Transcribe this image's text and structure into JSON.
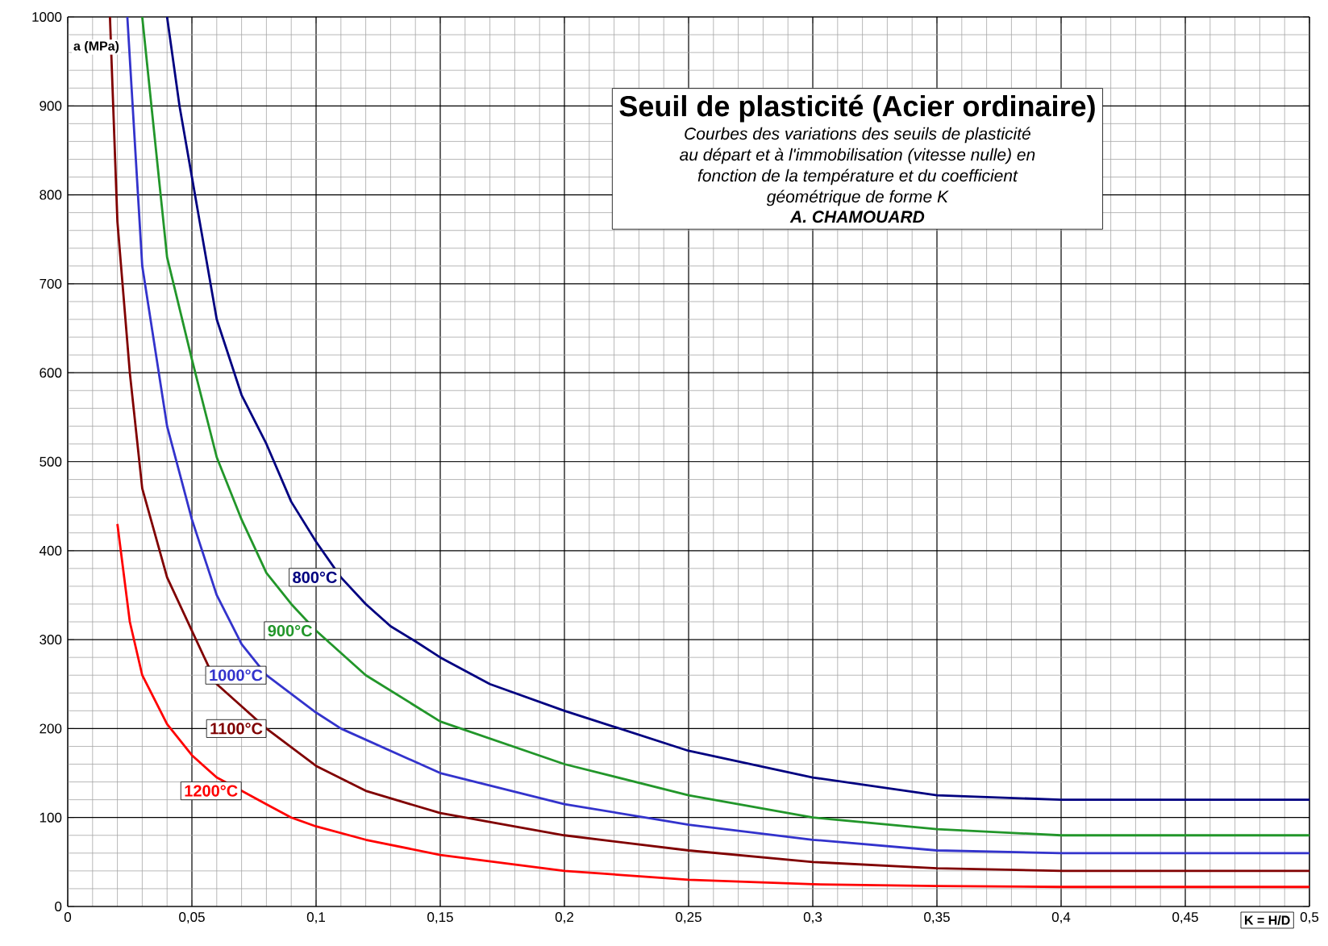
{
  "chart_data": {
    "type": "line",
    "title": "Seuil de plasticité (Acier ordinaire)",
    "subtitle": "Courbes des variations des seuils de plasticité au départ et à l'immobilisation (vitesse nulle) en fonction de la température et du coefficient géométrique de forme K",
    "annotations": [
      "**A. CHAMOUARD**"
    ],
    "xlabel": "K = H/D",
    "ylabel": "a (MPa)",
    "xlim": [
      0,
      0.5
    ],
    "ylim": [
      0,
      1000
    ],
    "xticks": [
      0,
      {
        "value": 0.01,
        "label": null
      },
      {
        "value": 0.02,
        "label": null
      },
      {
        "value": 0.03,
        "label": null
      },
      {
        "value": 0.04,
        "label": null
      },
      {
        "value": 0.05,
        "label": "0,05"
      },
      {
        "value": 0.06,
        "label": null
      },
      {
        "value": 0.07,
        "label": null
      },
      {
        "value": 0.08,
        "label": null
      },
      {
        "value": 0.09,
        "label": null
      },
      {
        "value": 0.1,
        "label": "0,1"
      },
      {
        "value": 0.11,
        "label": null
      },
      {
        "value": 0.12,
        "label": null
      },
      {
        "value": 0.13,
        "label": null
      },
      {
        "value": 0.14,
        "label": null
      },
      {
        "value": 0.15,
        "label": "0,15"
      },
      {
        "value": 0.16,
        "label": null
      },
      {
        "value": 0.17,
        "label": null
      },
      {
        "value": 0.18,
        "label": null
      },
      {
        "value": 0.19,
        "label": null
      },
      {
        "value": 0.2,
        "label": "0,2"
      },
      {
        "value": 0.21,
        "label": null
      },
      {
        "value": 0.22,
        "label": null
      },
      {
        "value": 0.23,
        "label": null
      },
      {
        "value": 0.24,
        "label": null
      },
      {
        "value": 0.25,
        "label": "0,25"
      },
      {
        "value": 0.26,
        "label": null
      },
      {
        "value": 0.27,
        "label": null
      },
      {
        "value": 0.28,
        "label": null
      },
      {
        "value": 0.29,
        "label": null
      },
      {
        "value": 0.3,
        "label": "0,3"
      },
      {
        "value": 0.31,
        "label": null
      },
      {
        "value": 0.32,
        "label": null
      },
      {
        "value": 0.33,
        "label": null
      },
      {
        "value": 0.34,
        "label": null
      },
      {
        "value": 0.35,
        "label": "0,35"
      },
      {
        "value": 0.36,
        "label": null
      },
      {
        "value": 0.37,
        "label": null
      },
      {
        "value": 0.38,
        "label": null
      },
      {
        "value": 0.39,
        "label": null
      },
      {
        "value": 0.4,
        "label": "0,4"
      },
      {
        "value": 0.41,
        "label": null
      },
      {
        "value": 0.42,
        "label": null
      },
      {
        "value": 0.43,
        "label": null
      },
      {
        "value": 0.44,
        "label": null
      },
      {
        "value": 0.45,
        "label": "0,45"
      },
      {
        "value": 0.46,
        "label": null
      },
      {
        "value": 0.47,
        "label": null
      },
      {
        "value": 0.48,
        "label": null
      },
      {
        "value": 0.49,
        "label": null
      },
      {
        "value": 0.5,
        "label": "0,5"
      }
    ],
    "yticks": [
      0,
      {
        "value": 20,
        "label": null
      },
      {
        "value": 40,
        "label": null
      },
      {
        "value": 60,
        "label": null
      },
      {
        "value": 80,
        "label": null
      },
      100,
      {
        "value": 120,
        "label": null
      },
      {
        "value": 140,
        "label": null
      },
      {
        "value": 160,
        "label": null
      },
      {
        "value": 180,
        "label": null
      },
      200,
      {
        "value": 220,
        "label": null
      },
      {
        "value": 240,
        "label": null
      },
      {
        "value": 260,
        "label": null
      },
      {
        "value": 280,
        "label": null
      },
      300,
      {
        "value": 320,
        "label": null
      },
      {
        "value": 340,
        "label": null
      },
      {
        "value": 360,
        "label": null
      },
      {
        "value": 380,
        "label": null
      },
      400,
      {
        "value": 420,
        "label": null
      },
      {
        "value": 440,
        "label": null
      },
      {
        "value": 460,
        "label": null
      },
      {
        "value": 480,
        "label": null
      },
      500,
      {
        "value": 520,
        "label": null
      },
      {
        "value": 540,
        "label": null
      },
      {
        "value": 560,
        "label": null
      },
      {
        "value": 580,
        "label": null
      },
      600,
      {
        "value": 620,
        "label": null
      },
      {
        "value": 640,
        "label": null
      },
      {
        "value": 660,
        "label": null
      },
      {
        "value": 680,
        "label": null
      },
      700,
      {
        "value": 720,
        "label": null
      },
      {
        "value": 740,
        "label": null
      },
      {
        "value": 760,
        "label": null
      },
      {
        "value": 780,
        "label": null
      },
      800,
      {
        "value": 820,
        "label": null
      },
      {
        "value": 840,
        "label": null
      },
      {
        "value": 860,
        "label": null
      },
      {
        "value": 880,
        "label": null
      },
      900,
      {
        "value": 920,
        "label": null
      },
      {
        "value": 940,
        "label": null
      },
      {
        "value": 960,
        "label": null
      },
      {
        "value": 980,
        "label": null
      },
      1000
    ],
    "grid": true,
    "legend": false,
    "marker": "none",
    "line_style": "solid",
    "series": [
      {
        "name": "800°C",
        "color": "#000080",
        "x": [
          0.04,
          0.045,
          0.05,
          0.06,
          0.07,
          0.08,
          0.09,
          0.1,
          0.11,
          0.12,
          0.13,
          0.14,
          0.15,
          0.17,
          0.2,
          0.25,
          0.3,
          0.35,
          0.4,
          0.45,
          0.5
        ],
        "values": [
          1000,
          900,
          820,
          660,
          575,
          520,
          455,
          410,
          370,
          340,
          315,
          298,
          280,
          250,
          220,
          175,
          145,
          125,
          120,
          120,
          120
        ]
      },
      {
        "name": "900°C",
        "color": "#22962a",
        "x": [
          0.03,
          0.04,
          0.05,
          0.06,
          0.07,
          0.08,
          0.09,
          0.1,
          0.12,
          0.15,
          0.2,
          0.25,
          0.3,
          0.35,
          0.4,
          0.45,
          0.5
        ],
        "values": [
          1000,
          730,
          615,
          505,
          435,
          375,
          340,
          310,
          260,
          208,
          160,
          125,
          100,
          87,
          80,
          80,
          80
        ]
      },
      {
        "name": "1000°C",
        "color": "#3333cc",
        "x": [
          0.024,
          0.03,
          0.04,
          0.05,
          0.06,
          0.07,
          0.08,
          0.1,
          0.11,
          0.15,
          0.2,
          0.25,
          0.3,
          0.35,
          0.4,
          0.45,
          0.5
        ],
        "values": [
          1000,
          720,
          540,
          435,
          350,
          295,
          260,
          218,
          200,
          150,
          115,
          92,
          75,
          63,
          60,
          60,
          60
        ]
      },
      {
        "name": "1100°C",
        "color": "#800000",
        "x": [
          0.017,
          0.02,
          0.025,
          0.03,
          0.04,
          0.05,
          0.06,
          0.07,
          0.08,
          0.1,
          0.12,
          0.15,
          0.2,
          0.25,
          0.3,
          0.35,
          0.4,
          0.45,
          0.5
        ],
        "values": [
          1000,
          770,
          600,
          470,
          370,
          310,
          250,
          225,
          200,
          158,
          130,
          105,
          80,
          63,
          50,
          43,
          40,
          40,
          40
        ]
      },
      {
        "name": "1200°C",
        "color": "#ff0000",
        "x": [
          0.02,
          0.025,
          0.03,
          0.04,
          0.05,
          0.06,
          0.07,
          0.08,
          0.09,
          0.1,
          0.12,
          0.15,
          0.2,
          0.25,
          0.3,
          0.35,
          0.4,
          0.45,
          0.5
        ],
        "values": [
          430,
          320,
          260,
          205,
          170,
          145,
          130,
          115,
          100,
          90,
          75,
          58,
          40,
          30,
          25,
          23,
          22,
          22,
          22
        ]
      }
    ]
  }
}
